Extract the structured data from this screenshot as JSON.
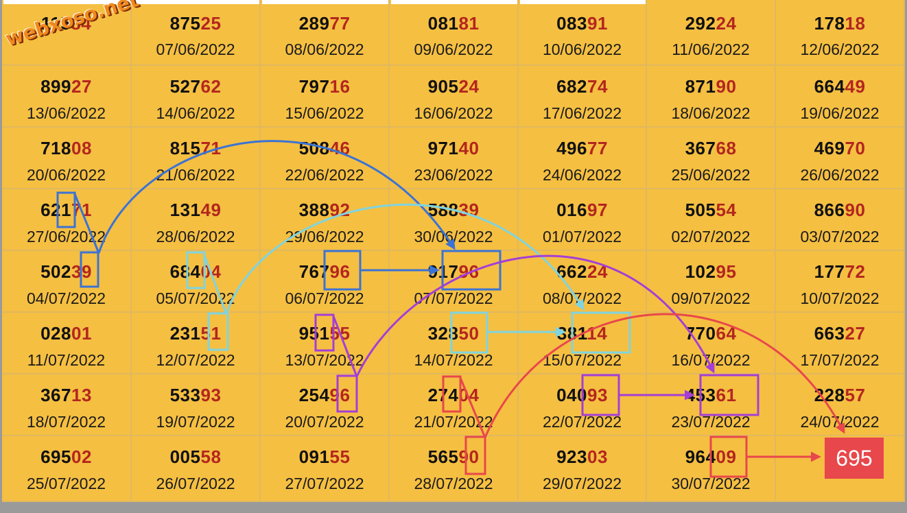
{
  "watermark": "webxoso.net",
  "result": "695",
  "grid": [
    [
      {
        "head": "115",
        "tail": "84",
        "date": ""
      },
      {
        "head": "875",
        "tail": "25",
        "date": "07/06/2022"
      },
      {
        "head": "289",
        "tail": "77",
        "date": "08/06/2022"
      },
      {
        "head": "081",
        "tail": "81",
        "date": "09/06/2022"
      },
      {
        "head": "083",
        "tail": "91",
        "date": "10/06/2022"
      },
      {
        "head": "292",
        "tail": "24",
        "date": "11/06/2022"
      },
      {
        "head": "178",
        "tail": "18",
        "date": "12/06/2022"
      }
    ],
    [
      {
        "head": "899",
        "tail": "27",
        "date": "13/06/2022"
      },
      {
        "head": "527",
        "tail": "62",
        "date": "14/06/2022"
      },
      {
        "head": "797",
        "tail": "16",
        "date": "15/06/2022"
      },
      {
        "head": "905",
        "tail": "24",
        "date": "16/06/2022"
      },
      {
        "head": "682",
        "tail": "74",
        "date": "17/06/2022"
      },
      {
        "head": "871",
        "tail": "90",
        "date": "18/06/2022"
      },
      {
        "head": "664",
        "tail": "49",
        "date": "19/06/2022"
      }
    ],
    [
      {
        "head": "718",
        "tail": "08",
        "date": "20/06/2022"
      },
      {
        "head": "815",
        "tail": "71",
        "date": "21/06/2022"
      },
      {
        "head": "508",
        "tail": "46",
        "date": "22/06/2022"
      },
      {
        "head": "971",
        "tail": "40",
        "date": "23/06/2022"
      },
      {
        "head": "496",
        "tail": "77",
        "date": "24/06/2022"
      },
      {
        "head": "367",
        "tail": "68",
        "date": "25/06/2022"
      },
      {
        "head": "469",
        "tail": "70",
        "date": "26/06/2022"
      }
    ],
    [
      {
        "head": "621",
        "tail": "71",
        "date": "27/06/2022"
      },
      {
        "head": "131",
        "tail": "49",
        "date": "28/06/2022"
      },
      {
        "head": "388",
        "tail": "92",
        "date": "29/06/2022"
      },
      {
        "head": "588",
        "tail": "39",
        "date": "30/06/2022"
      },
      {
        "head": "016",
        "tail": "97",
        "date": "01/07/2022"
      },
      {
        "head": "505",
        "tail": "54",
        "date": "02/07/2022"
      },
      {
        "head": "866",
        "tail": "90",
        "date": "03/07/2022"
      }
    ],
    [
      {
        "head": "502",
        "tail": "39",
        "date": "04/07/2022"
      },
      {
        "head": "684",
        "tail": "04",
        "date": "05/07/2022"
      },
      {
        "head": "767",
        "tail": "96",
        "date": "06/07/2022"
      },
      {
        "head": "917",
        "tail": "96",
        "date": "07/07/2022"
      },
      {
        "head": "662",
        "tail": "24",
        "date": "08/07/2022"
      },
      {
        "head": "102",
        "tail": "95",
        "date": "09/07/2022"
      },
      {
        "head": "177",
        "tail": "72",
        "date": "10/07/2022"
      }
    ],
    [
      {
        "head": "028",
        "tail": "01",
        "date": "11/07/2022"
      },
      {
        "head": "231",
        "tail": "51",
        "date": "12/07/2022"
      },
      {
        "head": "951",
        "tail": "55",
        "date": "13/07/2022"
      },
      {
        "head": "328",
        "tail": "50",
        "date": "14/07/2022"
      },
      {
        "head": "381",
        "tail": "14",
        "date": "15/07/2022"
      },
      {
        "head": "770",
        "tail": "64",
        "date": "16/07/2022"
      },
      {
        "head": "663",
        "tail": "27",
        "date": "17/07/2022"
      }
    ],
    [
      {
        "head": "367",
        "tail": "13",
        "date": "18/07/2022"
      },
      {
        "head": "533",
        "tail": "93",
        "date": "19/07/2022"
      },
      {
        "head": "254",
        "tail": "96",
        "date": "20/07/2022"
      },
      {
        "head": "274",
        "tail": "04",
        "date": "21/07/2022"
      },
      {
        "head": "040",
        "tail": "93",
        "date": "22/07/2022"
      },
      {
        "head": "453",
        "tail": "61",
        "date": "23/07/2022"
      },
      {
        "head": "228",
        "tail": "57",
        "date": "24/07/2022"
      }
    ],
    [
      {
        "head": "695",
        "tail": "02",
        "date": "25/07/2022"
      },
      {
        "head": "005",
        "tail": "58",
        "date": "26/07/2022"
      },
      {
        "head": "091",
        "tail": "55",
        "date": "27/07/2022"
      },
      {
        "head": "565",
        "tail": "90",
        "date": "28/07/2022"
      },
      {
        "head": "923",
        "tail": "03",
        "date": "29/07/2022"
      },
      {
        "head": "964",
        "tail": "09",
        "date": "30/07/2022"
      },
      {
        "head": "",
        "tail": "",
        "date": ""
      }
    ]
  ],
  "colors": {
    "cell_bg": "#f5bf42",
    "head_digits": "#111111",
    "tail_digits": "#b3261e",
    "path_blue": "#3b73d4",
    "path_cyan": "#7fd4e0",
    "path_purple": "#a53ed6",
    "path_red": "#e8474b"
  }
}
